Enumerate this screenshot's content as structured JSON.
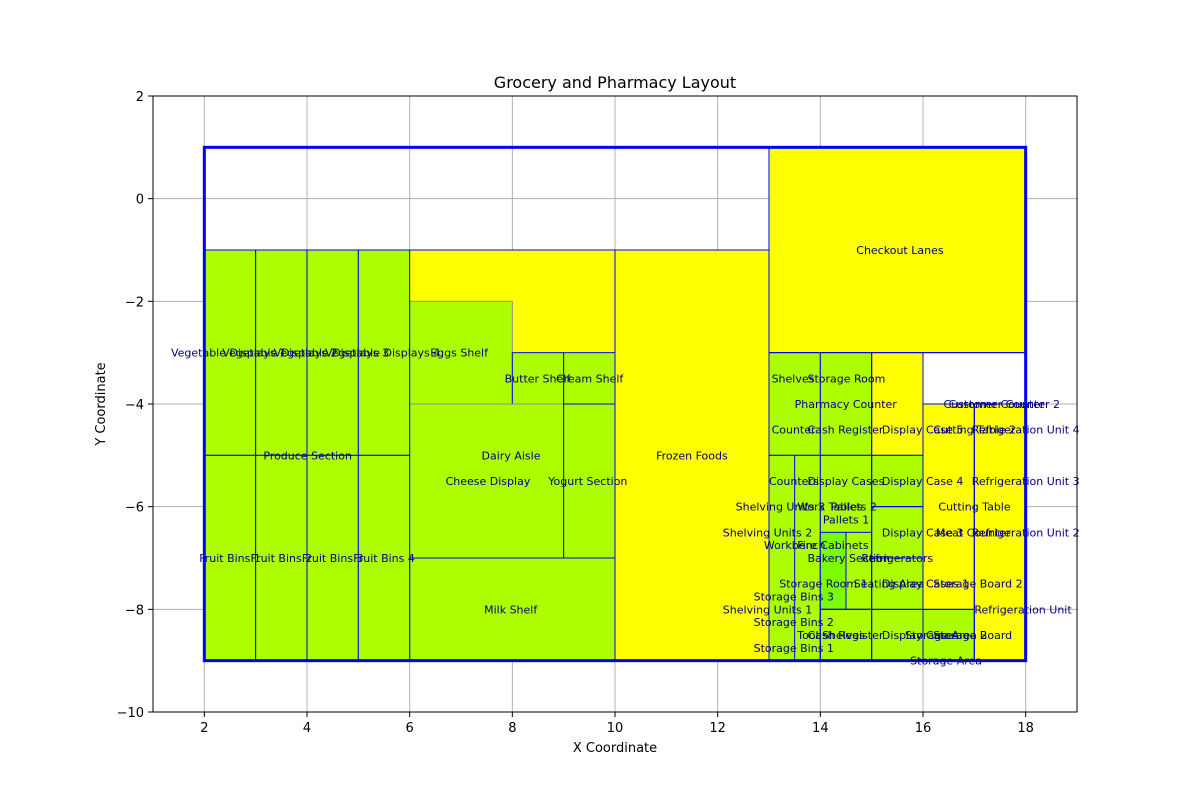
{
  "chart_data": {
    "type": "floor-plan",
    "title": "Grocery and Pharmacy Layout",
    "xlabel": "X Coordinate",
    "ylabel": "Y Coordinate",
    "xlim": [
      1,
      19
    ],
    "ylim": [
      -10,
      2
    ],
    "xticks": [
      2,
      4,
      6,
      8,
      10,
      12,
      14,
      16,
      18
    ],
    "yticks": [
      2,
      0,
      -2,
      -4,
      -6,
      -8,
      -10
    ],
    "grid": true,
    "colors": {
      "green_zone": "#adff00",
      "yellow_zone": "#ffff00",
      "bright_green": "#7cfc00",
      "edge": "#0000ff",
      "inner_edge": "#909090",
      "label": "#000080",
      "outline": "#0000ff"
    },
    "outline": {
      "x0": 2,
      "y0": -9,
      "x1": 18,
      "y1": 1
    },
    "zones": [
      {
        "name": "Checkout Lanes",
        "x0": 13,
        "y0": -3,
        "x1": 18,
        "y1": 1,
        "fill": "yellow",
        "lx": 14.7,
        "ly": -1
      },
      {
        "name": "Frozen Foods",
        "x0": 10,
        "y0": -9,
        "x1": 13,
        "y1": -1,
        "fill": "yellow",
        "lx": 10.8,
        "ly": -5
      },
      {
        "name": "Dairy Aisle",
        "x0": 6,
        "y0": -7,
        "x1": 10,
        "y1": -1,
        "fill": "yellow",
        "lx": 7.4,
        "ly": -5,
        "rect": false
      },
      {
        "name": "Eggs Shelf",
        "x0": 6,
        "y0": -4,
        "x1": 8,
        "y1": -2,
        "fill": "green",
        "lx": 6.4,
        "ly": -3
      },
      {
        "name": "Butter Shelf",
        "x0": 8,
        "y0": -4,
        "x1": 9,
        "y1": -3,
        "fill": "green",
        "lx": 7.85,
        "ly": -3.5
      },
      {
        "name": "Cream Shelf",
        "x0": 9,
        "y0": -4,
        "x1": 10,
        "y1": -3,
        "fill": "green",
        "lx": 8.85,
        "ly": -3.5
      },
      {
        "name": "Cheese Display",
        "x0": 6,
        "y0": -7,
        "x1": 9,
        "y1": -4,
        "fill": "green",
        "lx": 6.7,
        "ly": -5.5
      },
      {
        "name": "Yogurt Section",
        "x0": 9,
        "y0": -7,
        "x1": 10,
        "y1": -4,
        "fill": "green",
        "lx": 8.7,
        "ly": -5.5
      },
      {
        "name": "Milk Shelf",
        "x0": 6,
        "y0": -9,
        "x1": 10,
        "y1": -7,
        "fill": "green",
        "lx": 7.45,
        "ly": -8
      },
      {
        "name": "Produce Section",
        "x0": 2,
        "y0": -9,
        "x1": 6,
        "y1": -1,
        "fill": "green",
        "lx": 3.15,
        "ly": -5,
        "rect": false
      },
      {
        "name": "Vegetable Displays 1",
        "x0": 2,
        "y0": -5,
        "x1": 3,
        "y1": -1,
        "fill": "green",
        "lx": 1.35,
        "ly": -3
      },
      {
        "name": "Vegetable Displays 2",
        "x0": 3,
        "y0": -5,
        "x1": 4,
        "y1": -1,
        "fill": "green",
        "lx": 2.35,
        "ly": -3
      },
      {
        "name": "Vegetable Displays 3",
        "x0": 4,
        "y0": -5,
        "x1": 5,
        "y1": -1,
        "fill": "green",
        "lx": 3.35,
        "ly": -3
      },
      {
        "name": "Vegetable Displays 4",
        "x0": 5,
        "y0": -5,
        "x1": 6,
        "y1": -1,
        "fill": "green",
        "lx": 4.35,
        "ly": -3
      },
      {
        "name": "Fruit Bins 1",
        "x0": 2,
        "y0": -9,
        "x1": 3,
        "y1": -5,
        "fill": "green",
        "lx": 1.9,
        "ly": -7
      },
      {
        "name": "Fruit Bins 2",
        "x0": 3,
        "y0": -9,
        "x1": 4,
        "y1": -5,
        "fill": "green",
        "lx": 2.9,
        "ly": -7
      },
      {
        "name": "Fruit Bins 3",
        "x0": 4,
        "y0": -9,
        "x1": 5,
        "y1": -5,
        "fill": "green",
        "lx": 3.9,
        "ly": -7
      },
      {
        "name": "Fruit Bins 4",
        "x0": 5,
        "y0": -9,
        "x1": 6,
        "y1": -5,
        "fill": "green",
        "lx": 4.9,
        "ly": -7
      },
      {
        "name": "Shelves",
        "x0": 13,
        "y0": -5,
        "x1": 14,
        "y1": -3,
        "fill": "green",
        "lx": 13.05,
        "ly": -3.5
      },
      {
        "name": "Storage Room",
        "x0": 14,
        "y0": -5,
        "x1": 15,
        "y1": -3,
        "fill": "green",
        "lx": 13.75,
        "ly": -3.5
      },
      {
        "name": "Pharmacy Counter",
        "x0": 13,
        "y0": -9,
        "x1": 15,
        "y1": -3,
        "fill": "green",
        "lx": 13.5,
        "ly": -4,
        "rect": false
      },
      {
        "name": "Counter",
        "x0": 13,
        "y0": -5,
        "x1": 14,
        "y1": -4,
        "fill": "green",
        "lx": 13.05,
        "ly": -4.5,
        "rect": false
      },
      {
        "name": "Cash Register",
        "x0": 14,
        "y0": -5,
        "x1": 15,
        "y1": -4,
        "fill": "green",
        "lx": 13.75,
        "ly": -4.5,
        "rect": false
      },
      {
        "name": "Counters",
        "x0": 13,
        "y0": -9,
        "x1": 14,
        "y1": -5,
        "fill": "green",
        "lx": 13,
        "ly": -5.5
      },
      {
        "name": "Display Cases",
        "x0": 14,
        "y0": -9,
        "x1": 15,
        "y1": -5,
        "fill": "green",
        "lx": 13.75,
        "ly": -5.5
      },
      {
        "name": "Shelving Units 3",
        "x0": 13,
        "y0": -9,
        "x1": 13.5,
        "y1": -5,
        "fill": "green",
        "lx": 12.35,
        "ly": -6,
        "rect": false
      },
      {
        "name": "Work Tables",
        "x0": 13.5,
        "y0": -9,
        "x1": 14,
        "y1": -5,
        "fill": "green",
        "lx": 13.55,
        "ly": -6,
        "rect": false
      },
      {
        "name": "Pallets 2",
        "x0": 14,
        "y0": -6,
        "x1": 15,
        "y1": -5,
        "fill": "green",
        "lx": 14.2,
        "ly": -6,
        "rect": false
      },
      {
        "name": "Pallets 1",
        "x0": 14,
        "y0": -7,
        "x1": 15,
        "y1": -6,
        "fill": "green",
        "lx": 14.05,
        "ly": -6.25,
        "rect": false
      },
      {
        "name": "Shelving Units 2",
        "x0": 13,
        "y0": -9,
        "x1": 13.5,
        "y1": -5,
        "fill": "green",
        "lx": 12.1,
        "ly": -6.5,
        "rect": false
      },
      {
        "name": "Workbench",
        "x0": 13.5,
        "y0": -9,
        "x1": 14,
        "y1": -5,
        "fill": "green",
        "lx": 12.9,
        "ly": -6.75,
        "rect": false
      },
      {
        "name": "Fire Cabinets",
        "x0": 14,
        "y0": -8,
        "x1": 14.5,
        "y1": -6.5,
        "fill": "brightgreen",
        "lx": 13.55,
        "ly": -6.75
      },
      {
        "name": "Bakery Section",
        "x0": 14.5,
        "y0": -8,
        "x1": 15,
        "y1": -6.5,
        "fill": "green",
        "lx": 13.75,
        "ly": -7
      },
      {
        "name": "Storage Bins 3",
        "x0": 13,
        "y0": -9,
        "x1": 13.5,
        "y1": -5,
        "fill": "green",
        "lx": 12.7,
        "ly": -7.75,
        "rect": false
      },
      {
        "name": "Storage Room 1",
        "x0": 13.5,
        "y0": -9,
        "x1": 14,
        "y1": -5,
        "fill": "green",
        "lx": 13.2,
        "ly": -7.5,
        "rect": false
      },
      {
        "name": "Shelving Units 1",
        "x0": 13,
        "y0": -9,
        "x1": 13.5,
        "y1": -5,
        "fill": "green",
        "lx": 12.1,
        "ly": -8,
        "rect": false
      },
      {
        "name": "Storage Bins 2",
        "x0": 13,
        "y0": -9,
        "x1": 13.5,
        "y1": -5,
        "fill": "green",
        "lx": 12.7,
        "ly": -8.25,
        "rect": false
      },
      {
        "name": "Storage Bins 1",
        "x0": 13,
        "y0": -9,
        "x1": 13.5,
        "y1": -5,
        "fill": "green",
        "lx": 12.7,
        "ly": -8.75,
        "rect": false
      },
      {
        "name": "Tool Shelves",
        "x0": 14,
        "y0": -9,
        "x1": 15,
        "y1": -8,
        "fill": "green",
        "lx": 13.55,
        "ly": -8.5
      },
      {
        "name": "Cash Register",
        "x0": 14,
        "y0": -9,
        "x1": 15,
        "y1": -8,
        "fill": "green",
        "lx": 13.75,
        "ly": -8.5,
        "rect": false
      },
      {
        "name": "Seating Area",
        "x0": 15,
        "y0": -9,
        "x1": 16,
        "y1": -6,
        "fill": "green",
        "lx": 14.65,
        "ly": -7.5,
        "rect": false
      },
      {
        "name": "Refrigerators",
        "x0": 15,
        "y0": -9,
        "x1": 16,
        "y1": -6,
        "fill": "green",
        "lx": 14.8,
        "ly": -7
      },
      {
        "name": "Display Cases",
        "x0": 15,
        "y0": -9,
        "x1": 16,
        "y1": -5,
        "fill": "green",
        "lx": 15.2,
        "ly": -8.5,
        "rect": false
      },
      {
        "name": "Display Cases 1",
        "x0": 15,
        "y0": -9,
        "x1": 16,
        "y1": -5,
        "fill": "green",
        "lx": 15.2,
        "ly": -7.5,
        "rect": false
      },
      {
        "name": "Display Case 5",
        "x0": 15,
        "y0": -5,
        "x1": 16,
        "y1": -3,
        "fill": "yellow",
        "lx": 15.2,
        "ly": -4.5
      },
      {
        "name": "Display Case 4",
        "x0": 15,
        "y0": -6,
        "x1": 16,
        "y1": -5,
        "fill": "green",
        "lx": 15.2,
        "ly": -5.5
      },
      {
        "name": "Display Case 3",
        "x0": 15,
        "y0": -8,
        "x1": 16,
        "y1": -6,
        "fill": "green",
        "lx": 15.2,
        "ly": -6.5
      },
      {
        "name": "Storage Area 2",
        "x0": 16,
        "y0": -9,
        "x1": 17,
        "y1": -8,
        "fill": "green",
        "lx": 15.65,
        "ly": -8.5,
        "rect": false
      },
      {
        "name": "Storage Area",
        "x0": 16,
        "y0": -9,
        "x1": 17,
        "y1": -8,
        "fill": "green",
        "lx": 15.75,
        "ly": -9
      },
      {
        "name": "Storage Board",
        "x0": 16,
        "y0": -9,
        "x1": 17,
        "y1": -8,
        "fill": "green",
        "lx": 16.2,
        "ly": -8.5,
        "rect": false
      },
      {
        "name": "Storage Board 2",
        "x0": 16,
        "y0": -8,
        "x1": 17,
        "y1": -4,
        "fill": "yellow",
        "lx": 16.2,
        "ly": -7.5,
        "rect": false
      },
      {
        "name": "Meat Counter",
        "x0": 16,
        "y0": -8,
        "x1": 17,
        "y1": -4,
        "fill": "yellow",
        "lx": 16.25,
        "ly": -6.5
      },
      {
        "name": "Cutting Table",
        "x0": 16,
        "y0": -8,
        "x1": 17,
        "y1": -4,
        "fill": "yellow",
        "lx": 16.3,
        "ly": -6,
        "rect": false
      },
      {
        "name": "Cutting Table 2",
        "x0": 16,
        "y0": -8,
        "x1": 17,
        "y1": -4,
        "fill": "yellow",
        "lx": 16.2,
        "ly": -4.5,
        "rect": false
      },
      {
        "name": "Refrigeration Unit 4",
        "x0": 17,
        "y0": -5,
        "x1": 18,
        "y1": -4,
        "fill": "yellow",
        "lx": 16.95,
        "ly": -4.5,
        "rect": false
      },
      {
        "name": "Refrigeration Unit 3",
        "x0": 17,
        "y0": -6,
        "x1": 18,
        "y1": -5,
        "fill": "yellow",
        "lx": 16.95,
        "ly": -5.5,
        "rect": false
      },
      {
        "name": "Refrigeration Unit 2",
        "x0": 17,
        "y0": -7,
        "x1": 18,
        "y1": -6,
        "fill": "yellow",
        "lx": 16.95,
        "ly": -6.5,
        "rect": false
      },
      {
        "name": "Refrigeration Unit",
        "x0": 17,
        "y0": -9,
        "x1": 18,
        "y1": -4,
        "fill": "yellow",
        "lx": 17,
        "ly": -8
      },
      {
        "name": "Customer Counter",
        "x0": 16,
        "y0": -4,
        "x1": 18,
        "y1": -3,
        "fill": "white",
        "lx": 16.4,
        "ly": -4,
        "rect": false
      },
      {
        "name": "Customer Counter 2",
        "x0": 16,
        "y0": -4,
        "x1": 18,
        "y1": -3,
        "fill": "white",
        "lx": 16.5,
        "ly": -4,
        "rect": false
      }
    ]
  }
}
